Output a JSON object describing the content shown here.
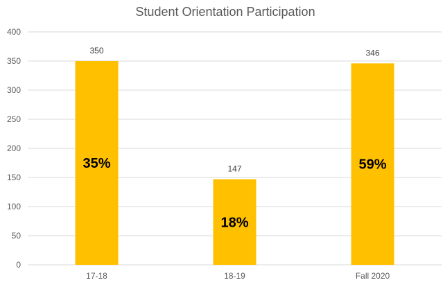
{
  "chart_data": {
    "type": "bar",
    "title": "Student Orientation Participation",
    "xlabel": "",
    "ylabel": "",
    "categories": [
      "17-18",
      "18-19",
      "Fall 2020"
    ],
    "values": [
      350,
      147,
      346
    ],
    "value_labels": [
      "350",
      "147",
      "346"
    ],
    "percent_labels": [
      "35%",
      "18%",
      "59%"
    ],
    "ylim": [
      0,
      400
    ],
    "yticks": [
      0,
      50,
      100,
      150,
      200,
      250,
      300,
      350,
      400
    ],
    "ytick_labels": [
      "0",
      "50",
      "100",
      "150",
      "200",
      "250",
      "300",
      "350",
      "400"
    ],
    "grid": true,
    "legend": "none",
    "bar_color": "#FFC000"
  }
}
